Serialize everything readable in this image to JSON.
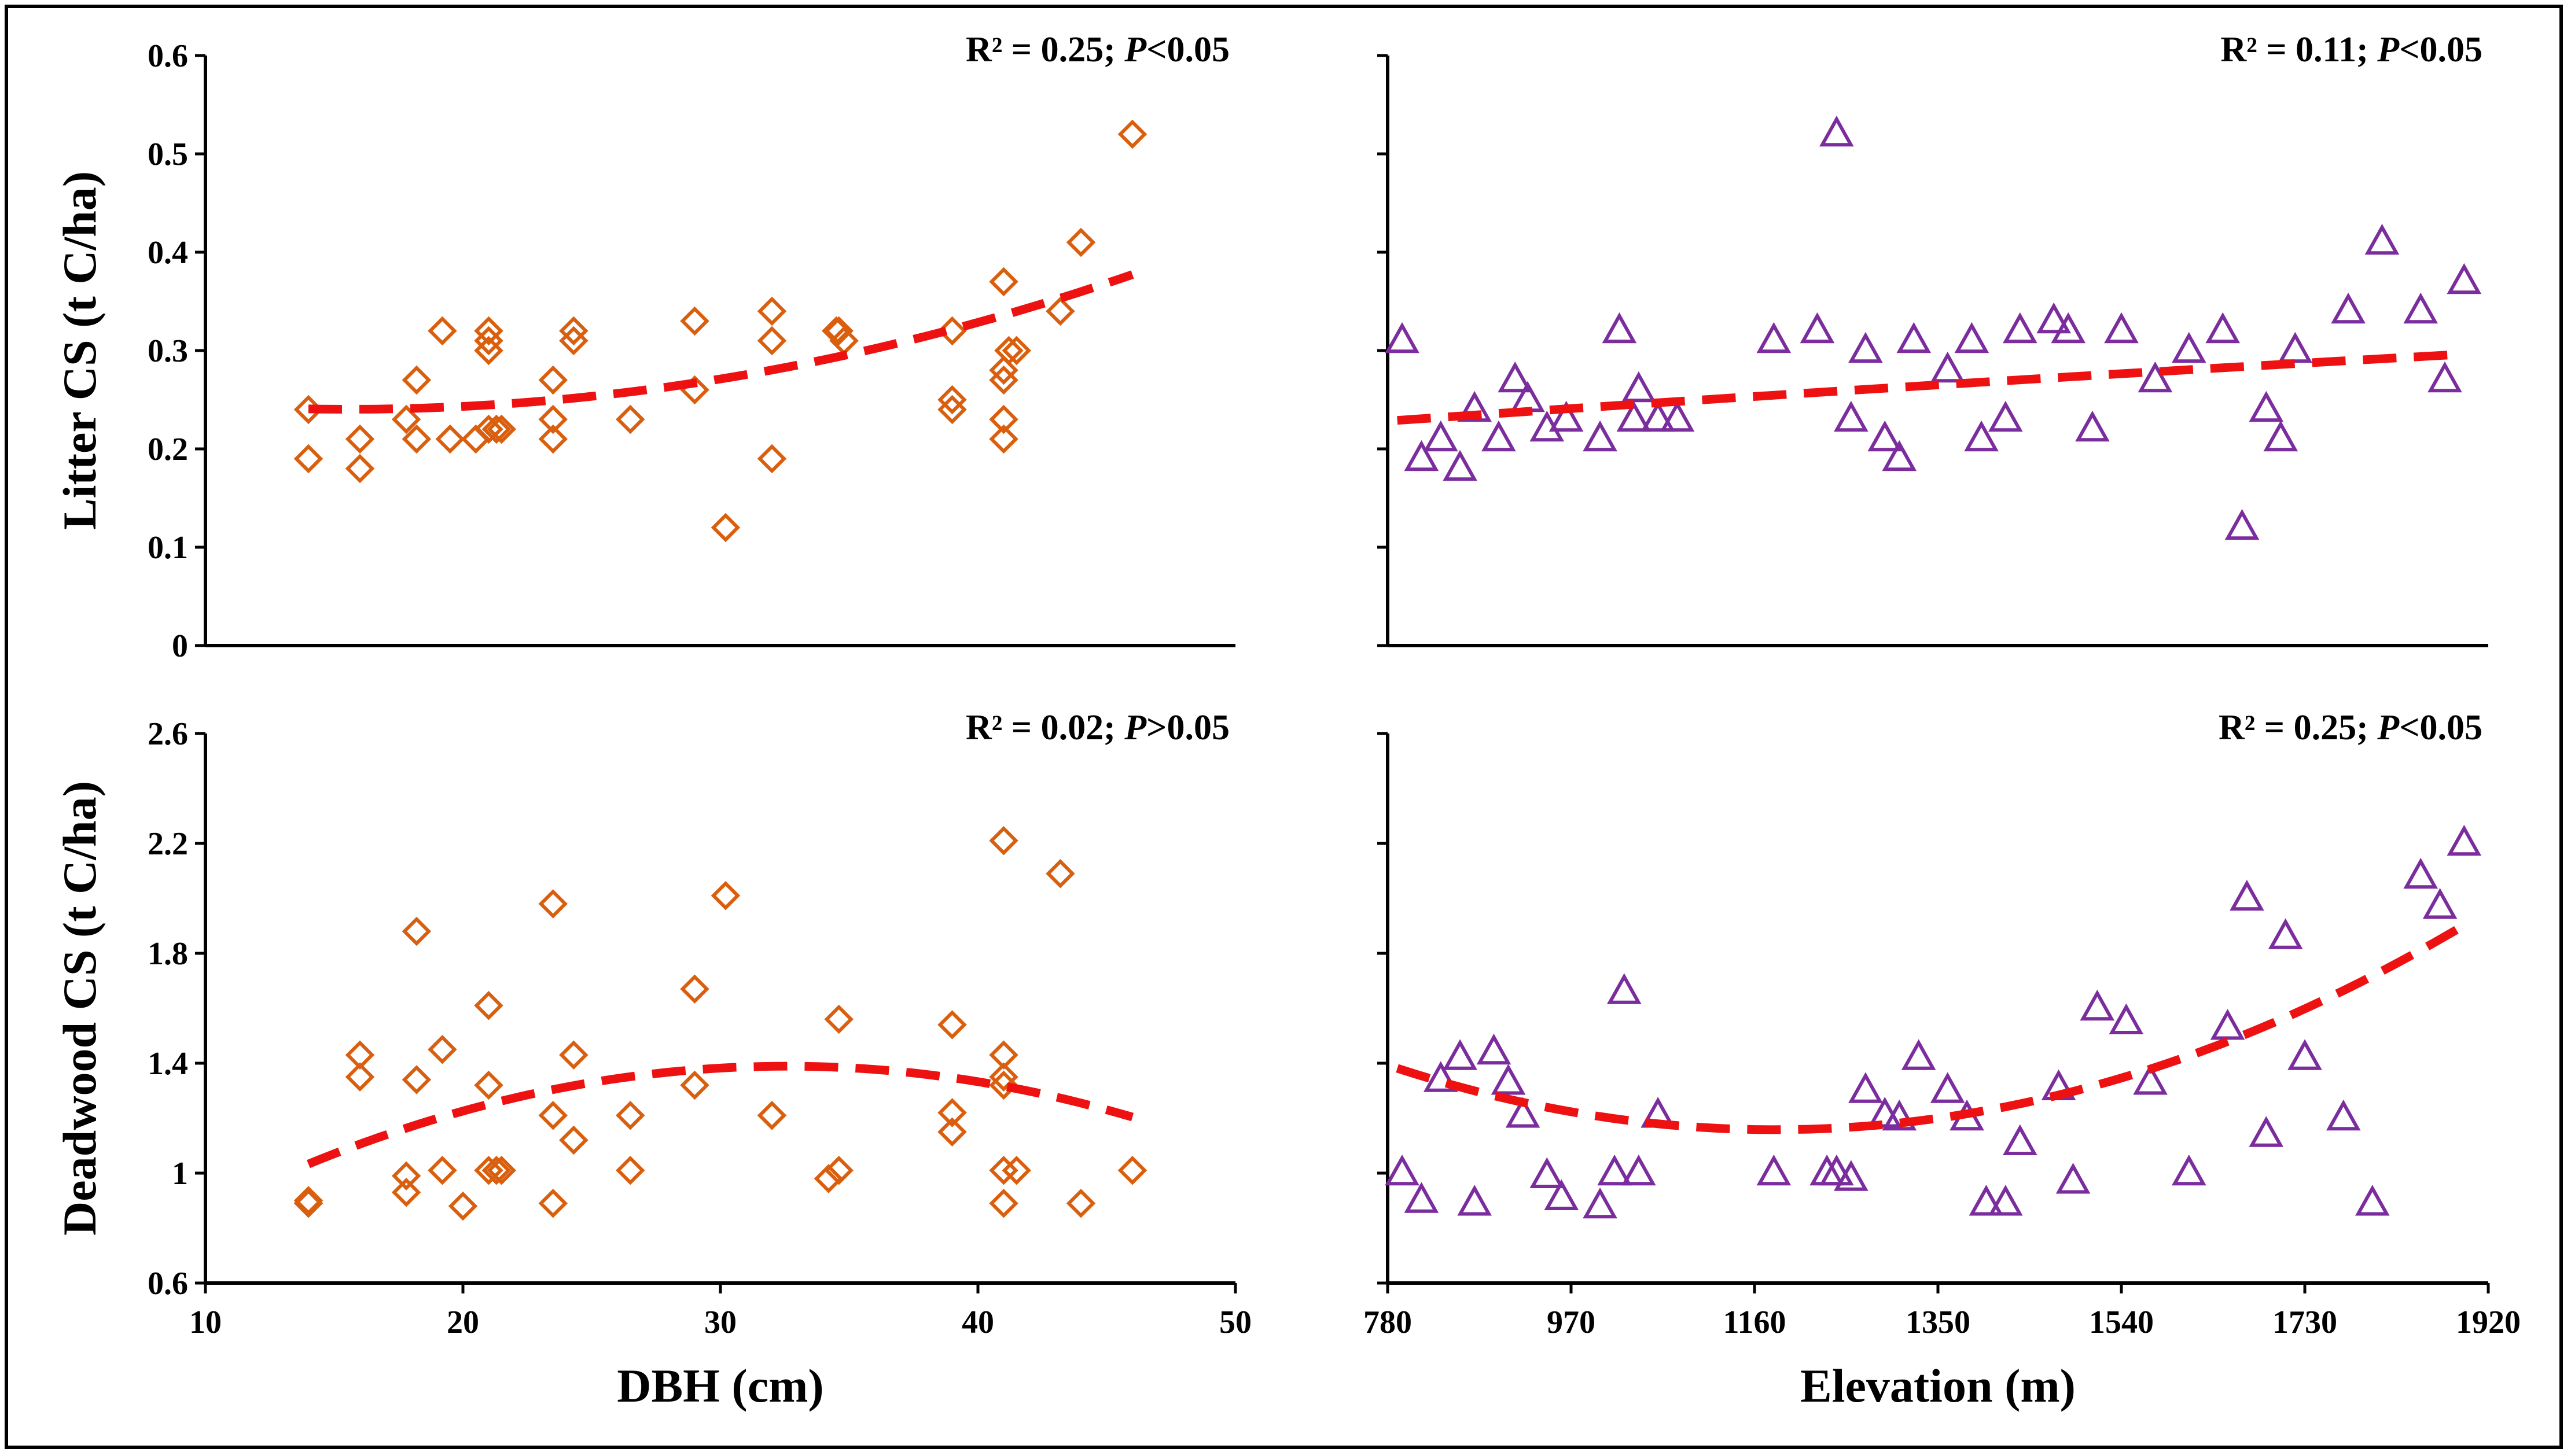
{
  "colors": {
    "diamond": "#d95f0e",
    "triangle": "#7b2d9e",
    "trend": "#ee1111",
    "axis": "#000000"
  },
  "chart_data": [
    {
      "id": "litter-dbh",
      "type": "scatter",
      "marker": "diamond",
      "xlabel": "DBH (cm)",
      "ylabel": "Litter CS (t C/ha)",
      "xlim": [
        10,
        50
      ],
      "ylim": [
        0,
        0.6
      ],
      "xticks": [],
      "yticks": [
        0,
        0.1,
        0.2,
        0.3,
        0.4,
        0.5,
        0.6
      ],
      "ytick_labels": [
        "0",
        "0.1",
        "0.2",
        "0.3",
        "0.4",
        "0.5",
        "0.6"
      ],
      "annotation": {
        "main": "R² = 0.25; ",
        "italic": "P",
        "rest": "<0.05"
      },
      "trend_coef": [
        0.2762,
        -0.00461,
        0.000148
      ],
      "trend_range": [
        14,
        46
      ],
      "points": [
        [
          14,
          0.19
        ],
        [
          14,
          0.24
        ],
        [
          16,
          0.18
        ],
        [
          16,
          0.21
        ],
        [
          17.8,
          0.23
        ],
        [
          18.2,
          0.21
        ],
        [
          18.2,
          0.27
        ],
        [
          19.2,
          0.32
        ],
        [
          19.5,
          0.21
        ],
        [
          20.5,
          0.21
        ],
        [
          21,
          0.32
        ],
        [
          21,
          0.31
        ],
        [
          21,
          0.3
        ],
        [
          21,
          0.22
        ],
        [
          21.3,
          0.22
        ],
        [
          21.5,
          0.22
        ],
        [
          23.5,
          0.21
        ],
        [
          23.5,
          0.23
        ],
        [
          23.5,
          0.27
        ],
        [
          24.3,
          0.31
        ],
        [
          24.3,
          0.32
        ],
        [
          26.5,
          0.23
        ],
        [
          29,
          0.33
        ],
        [
          29,
          0.26
        ],
        [
          30.2,
          0.12
        ],
        [
          32,
          0.34
        ],
        [
          32,
          0.31
        ],
        [
          32,
          0.19
        ],
        [
          34.5,
          0.32
        ],
        [
          34.6,
          0.32
        ],
        [
          34.8,
          0.31
        ],
        [
          39,
          0.32
        ],
        [
          39,
          0.25
        ],
        [
          39,
          0.24
        ],
        [
          41,
          0.37
        ],
        [
          41,
          0.28
        ],
        [
          41,
          0.27
        ],
        [
          41,
          0.23
        ],
        [
          41,
          0.21
        ],
        [
          41.2,
          0.3
        ],
        [
          41.5,
          0.3
        ],
        [
          43.2,
          0.34
        ],
        [
          44,
          0.41
        ],
        [
          46,
          0.52
        ]
      ]
    },
    {
      "id": "litter-elev",
      "type": "scatter",
      "marker": "triangle",
      "xlabel": "Elevation (m)",
      "ylabel": "",
      "xlim": [
        780,
        1920
      ],
      "ylim": [
        0,
        0.6
      ],
      "xticks": [],
      "yticks": [
        0,
        0.1,
        0.2,
        0.3,
        0.4,
        0.5,
        0.6
      ],
      "ytick_labels": [],
      "annotation": {
        "main": "R² = 0.11; ",
        "italic": "P",
        "rest": "<0.05"
      },
      "trend_coef": [
        0.1711,
        7.84e-05,
        -6.5e-09
      ],
      "trend_range": [
        790,
        1890
      ],
      "points": [
        [
          795,
          0.31
        ],
        [
          815,
          0.19
        ],
        [
          835,
          0.21
        ],
        [
          855,
          0.18
        ],
        [
          870,
          0.24
        ],
        [
          895,
          0.21
        ],
        [
          912,
          0.27
        ],
        [
          925,
          0.25
        ],
        [
          945,
          0.22
        ],
        [
          965,
          0.23
        ],
        [
          1000,
          0.21
        ],
        [
          1020,
          0.32
        ],
        [
          1035,
          0.23
        ],
        [
          1040,
          0.26
        ],
        [
          1060,
          0.23
        ],
        [
          1080,
          0.23
        ],
        [
          1180,
          0.31
        ],
        [
          1225,
          0.32
        ],
        [
          1245,
          0.52
        ],
        [
          1260,
          0.23
        ],
        [
          1275,
          0.3
        ],
        [
          1295,
          0.21
        ],
        [
          1310,
          0.19
        ],
        [
          1325,
          0.31
        ],
        [
          1360,
          0.28
        ],
        [
          1385,
          0.31
        ],
        [
          1395,
          0.21
        ],
        [
          1420,
          0.23
        ],
        [
          1435,
          0.32
        ],
        [
          1470,
          0.33
        ],
        [
          1485,
          0.32
        ],
        [
          1510,
          0.22
        ],
        [
          1540,
          0.32
        ],
        [
          1575,
          0.27
        ],
        [
          1610,
          0.3
        ],
        [
          1645,
          0.32
        ],
        [
          1665,
          0.12
        ],
        [
          1690,
          0.24
        ],
        [
          1705,
          0.21
        ],
        [
          1720,
          0.3
        ],
        [
          1775,
          0.34
        ],
        [
          1810,
          0.41
        ],
        [
          1850,
          0.34
        ],
        [
          1875,
          0.27
        ],
        [
          1895,
          0.37
        ]
      ]
    },
    {
      "id": "deadwood-dbh",
      "type": "scatter",
      "marker": "diamond",
      "xlabel": "DBH (cm)",
      "ylabel": "Deadwood CS (t C/ha)",
      "xlim": [
        10,
        50
      ],
      "ylim": [
        0.6,
        2.6
      ],
      "xticks": [
        10,
        20,
        30,
        40,
        50
      ],
      "xtick_labels": [
        "10",
        "20",
        "30",
        "40",
        "50"
      ],
      "yticks": [
        0.6,
        1,
        1.4,
        1.8,
        2.2,
        2.6
      ],
      "ytick_labels": [
        "0.6",
        "1",
        "1.4",
        "1.8",
        "2.2",
        "2.6"
      ],
      "annotation": {
        "main": "R² = 0.02; ",
        "italic": "P",
        "rest": ">0.05"
      },
      "trend_coef": [
        0.2943,
        0.0672,
        -0.001031
      ],
      "trend_range": [
        14,
        46
      ],
      "points": [
        [
          14,
          0.9
        ],
        [
          14,
          0.89
        ],
        [
          16,
          1.43
        ],
        [
          16,
          1.35
        ],
        [
          17.8,
          0.99
        ],
        [
          17.8,
          0.93
        ],
        [
          18.2,
          1.88
        ],
        [
          18.2,
          1.34
        ],
        [
          19.2,
          1.45
        ],
        [
          19.2,
          1.01
        ],
        [
          20,
          0.88
        ],
        [
          21,
          1.61
        ],
        [
          21,
          1.32
        ],
        [
          21,
          1.01
        ],
        [
          21.3,
          1.01
        ],
        [
          21.5,
          1.01
        ],
        [
          23.5,
          1.98
        ],
        [
          23.5,
          1.21
        ],
        [
          23.5,
          0.89
        ],
        [
          24.3,
          1.43
        ],
        [
          24.3,
          1.12
        ],
        [
          26.5,
          1.21
        ],
        [
          26.5,
          1.01
        ],
        [
          29,
          1.67
        ],
        [
          29,
          1.32
        ],
        [
          30.2,
          2.01
        ],
        [
          32,
          1.21
        ],
        [
          32,
          1.21
        ],
        [
          34.2,
          0.98
        ],
        [
          34.6,
          1.56
        ],
        [
          34.6,
          1.01
        ],
        [
          39,
          1.54
        ],
        [
          39,
          1.22
        ],
        [
          39,
          1.15
        ],
        [
          41,
          2.21
        ],
        [
          41,
          1.43
        ],
        [
          41,
          1.35
        ],
        [
          41,
          1.32
        ],
        [
          41,
          1.01
        ],
        [
          41,
          0.89
        ],
        [
          41.5,
          1.01
        ],
        [
          43.2,
          2.09
        ],
        [
          44,
          0.89
        ],
        [
          46,
          1.01
        ]
      ]
    },
    {
      "id": "deadwood-elev",
      "type": "scatter",
      "marker": "triangle",
      "xlabel": "Elevation (m)",
      "ylabel": "",
      "xlim": [
        780,
        1920
      ],
      "ylim": [
        0.6,
        2.6
      ],
      "xticks": [
        780,
        970,
        1160,
        1350,
        1540,
        1730,
        1920
      ],
      "xtick_labels": [
        "780",
        "970",
        "1160",
        "1350",
        "1540",
        "1730",
        "1920"
      ],
      "yticks": [
        0.6,
        1,
        1.4,
        1.8,
        2.2,
        2.6
      ],
      "ytick_labels": [],
      "annotation": {
        "main": "R² = 0.25; ",
        "italic": "P",
        "rest": "<0.05"
      },
      "trend_coef": [
        3.195,
        -0.003449,
        1.46e-06
      ],
      "trend_range": [
        790,
        1900
      ],
      "points": [
        [
          795,
          1.0
        ],
        [
          815,
          0.9
        ],
        [
          835,
          1.34
        ],
        [
          855,
          1.42
        ],
        [
          870,
          0.89
        ],
        [
          890,
          1.44
        ],
        [
          905,
          1.33
        ],
        [
          920,
          1.21
        ],
        [
          945,
          0.99
        ],
        [
          960,
          0.91
        ],
        [
          1000,
          0.88
        ],
        [
          1015,
          1.0
        ],
        [
          1025,
          1.66
        ],
        [
          1040,
          1.0
        ],
        [
          1060,
          1.21
        ],
        [
          1180,
          1.0
        ],
        [
          1235,
          1.0
        ],
        [
          1245,
          1.0
        ],
        [
          1260,
          0.98
        ],
        [
          1275,
          1.3
        ],
        [
          1295,
          1.21
        ],
        [
          1310,
          1.2
        ],
        [
          1330,
          1.42
        ],
        [
          1360,
          1.3
        ],
        [
          1380,
          1.2
        ],
        [
          1400,
          0.89
        ],
        [
          1420,
          0.89
        ],
        [
          1435,
          1.11
        ],
        [
          1475,
          1.31
        ],
        [
          1490,
          0.97
        ],
        [
          1515,
          1.6
        ],
        [
          1545,
          1.55
        ],
        [
          1570,
          1.33
        ],
        [
          1610,
          1.0
        ],
        [
          1650,
          1.53
        ],
        [
          1670,
          2.0
        ],
        [
          1690,
          1.14
        ],
        [
          1710,
          1.86
        ],
        [
          1730,
          1.42
        ],
        [
          1770,
          1.2
        ],
        [
          1800,
          0.89
        ],
        [
          1850,
          2.08
        ],
        [
          1870,
          1.97
        ],
        [
          1895,
          2.2
        ]
      ]
    }
  ]
}
